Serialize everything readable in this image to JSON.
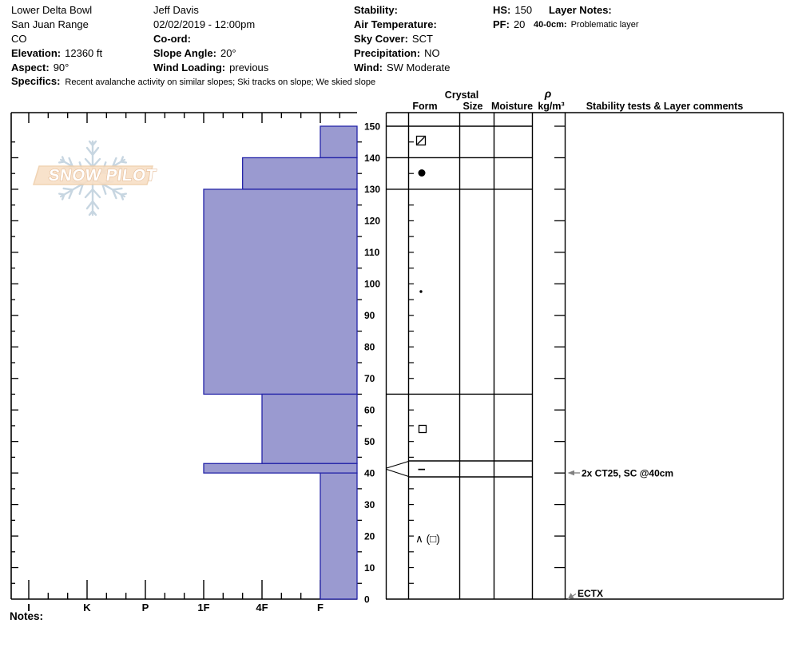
{
  "header_columns": [
    {
      "lines": [
        {
          "label": "",
          "value": "Lower Delta Bowl"
        },
        {
          "label": "",
          "value": "San Juan Range"
        },
        {
          "label": "",
          "value": "CO"
        },
        {
          "label": "Elevation:",
          "value": "12360 ft"
        },
        {
          "label": "Aspect:",
          "value": "90°"
        }
      ]
    },
    {
      "lines": [
        {
          "label": "",
          "value": "Jeff Davis"
        },
        {
          "label": "",
          "value": "02/02/2019 - 12:00pm"
        },
        {
          "label": "Co-ord:",
          "value": ""
        },
        {
          "label": "Slope Angle:",
          "value": "20°"
        },
        {
          "label": "Wind Loading:",
          "value": "previous"
        }
      ]
    },
    {
      "lines": [
        {
          "label": "Stability:",
          "value": ""
        },
        {
          "label": "Air Temperature:",
          "value": ""
        },
        {
          "label": "Sky Cover:",
          "value": "SCT"
        },
        {
          "label": "Precipitation:",
          "value": "NO"
        },
        {
          "label": "Wind:",
          "value": "SW Moderate"
        }
      ]
    },
    {
      "lines": [
        {
          "label": "HS:",
          "value": "150"
        },
        {
          "label": "PF:",
          "value": "20"
        }
      ]
    },
    {
      "lines": [
        {
          "label": "Layer Notes:",
          "value": "",
          "indent": true
        },
        {
          "label": "40-0cm:",
          "value": "Problematic layer",
          "small": true
        }
      ]
    }
  ],
  "specifics": {
    "label": "Specifics:",
    "value": "Recent avalanche activity on similar slopes; Ski tracks on slope; We skied slope"
  },
  "notes": {
    "label": "Notes:"
  },
  "watermark": {
    "text": "SNOW PILOT"
  },
  "table_headers": {
    "form": "Form",
    "crystal": "Crystal",
    "size": "Size",
    "moisture": "Moisture",
    "rho": "ρ",
    "rho_unit": "kg/m³",
    "stability": "Stability tests & Layer comments"
  },
  "chart_data": {
    "type": "bar",
    "profile": "snow-hardness-vs-depth",
    "hardness_categories": [
      "I",
      "K",
      "P",
      "1F",
      "4F",
      "F"
    ],
    "depth_ticks": [
      150,
      140,
      130,
      120,
      110,
      100,
      90,
      80,
      70,
      60,
      50,
      40,
      30,
      20,
      10,
      0
    ],
    "depth_range": [
      0,
      150
    ],
    "layers": [
      {
        "top_cm": 150,
        "bottom_cm": 140,
        "hardness": "F",
        "form_glyph": "⧄",
        "form_symbol": "slashed-square"
      },
      {
        "top_cm": 140,
        "bottom_cm": 130,
        "hardness": "4F+",
        "form_glyph": "●",
        "form_symbol": "large-dot"
      },
      {
        "top_cm": 130,
        "bottom_cm": 65,
        "hardness": "1F",
        "form_glyph": "·",
        "form_symbol": "small-dot"
      },
      {
        "top_cm": 65,
        "bottom_cm": 43,
        "hardness": "4F",
        "form_glyph": "□",
        "form_symbol": "open-square"
      },
      {
        "top_cm": 43,
        "bottom_cm": 40,
        "hardness": "1F",
        "form_glyph": "−",
        "form_symbol": "dash"
      },
      {
        "top_cm": 40,
        "bottom_cm": 0,
        "hardness": "F",
        "form_glyph": "∧ (□)",
        "form_symbol": "text-glyphs"
      }
    ],
    "annotations": [
      {
        "text": "2x CT25, SC @40cm",
        "depth_cm": 40
      },
      {
        "text": "ECTX",
        "depth_cm": 0
      }
    ],
    "colors": {
      "bar_fill": "#9a9ad0",
      "bar_stroke": "#2424a8",
      "line": "#000000",
      "arrow": "#808080",
      "watermark_band": "#f7dcc0",
      "watermark_band_stroke": "#edc9a2",
      "watermark_text_stroke": "#e3b58d",
      "snowflake": "#b7c9d9"
    }
  }
}
